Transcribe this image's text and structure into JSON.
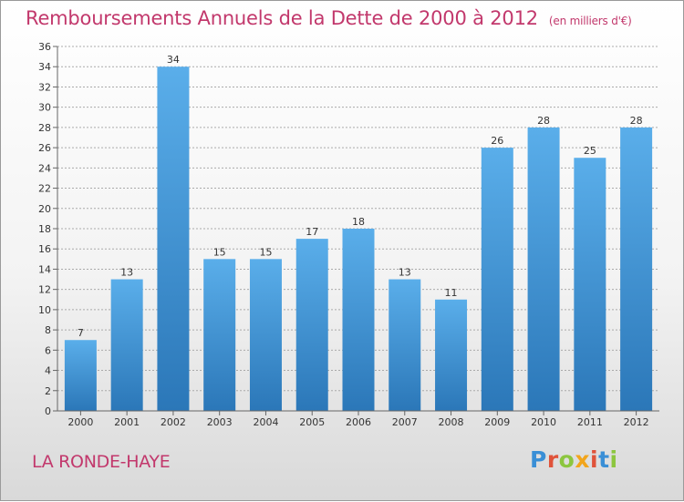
{
  "title": "Remboursements Annuels de la Dette de 2000 à 2012",
  "subtitle": "(en milliers d'€)",
  "place": "LA RONDE-HAYE",
  "logo": {
    "text": "Proxiti",
    "colors": [
      "#3a8fd6",
      "#e0533a",
      "#8cc63f",
      "#f2a51c",
      "#e0533a",
      "#3a8fd6",
      "#8cc63f"
    ]
  },
  "colors": {
    "title": "#c2386c",
    "bar_light": "#5aaeea",
    "bar_dark": "#2b77b8",
    "grid": "#aaaaaa"
  },
  "chart_data": {
    "type": "bar",
    "categories": [
      "2000",
      "2001",
      "2002",
      "2003",
      "2004",
      "2005",
      "2006",
      "2007",
      "2008",
      "2009",
      "2010",
      "2011",
      "2012"
    ],
    "values": [
      7,
      13,
      34,
      15,
      15,
      17,
      18,
      13,
      11,
      26,
      28,
      25,
      28
    ],
    "data_labels": [
      "7",
      "13",
      "34",
      "15",
      "15",
      "17",
      "18",
      "13",
      "11",
      "26",
      "28",
      "25",
      "28"
    ],
    "yticks": [
      0,
      2,
      4,
      6,
      8,
      10,
      12,
      14,
      16,
      18,
      20,
      22,
      24,
      26,
      28,
      30,
      32,
      34,
      36
    ],
    "ylim": [
      0,
      36
    ],
    "grid": true,
    "title": "Remboursements Annuels de la Dette de 2000 à 2012",
    "xlabel": "",
    "ylabel": ""
  }
}
